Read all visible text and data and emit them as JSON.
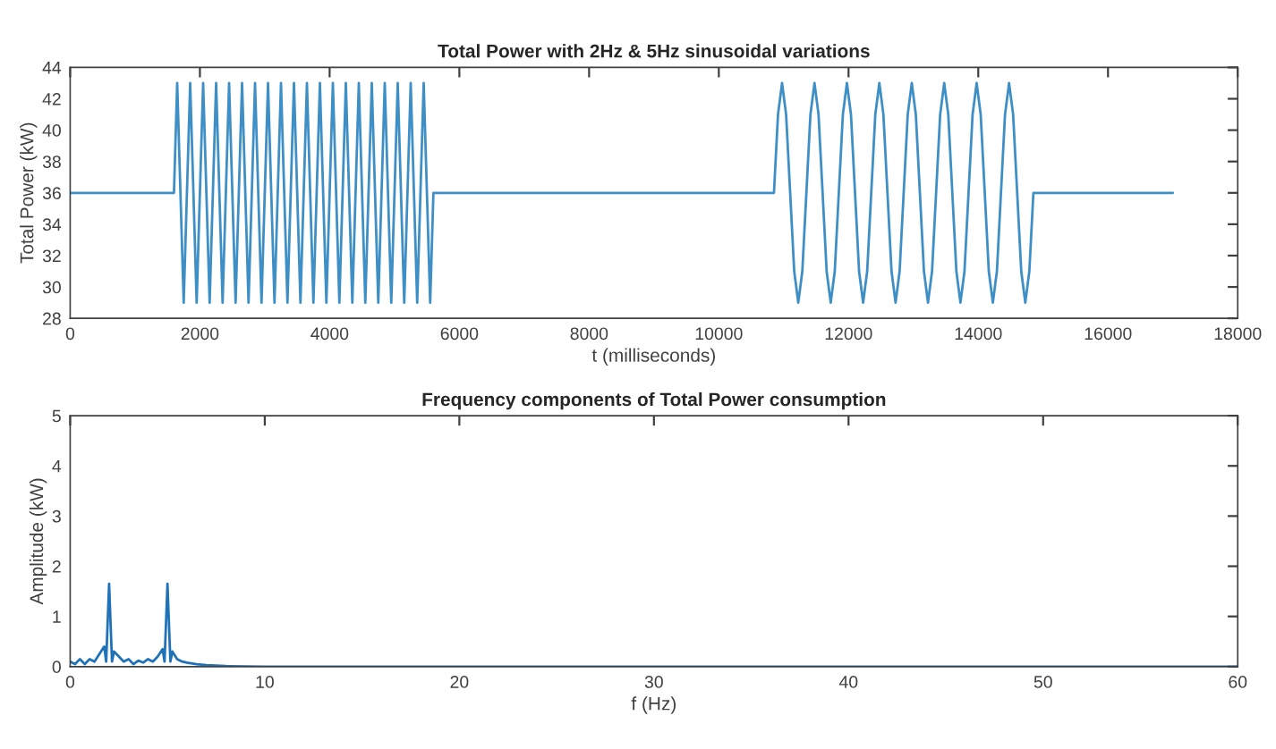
{
  "chart_data": [
    {
      "type": "line",
      "title": "Total Power with 2Hz & 5Hz sinusoidal variations",
      "xlabel": "t (milliseconds)",
      "ylabel": "Total Power (kW)",
      "xlim": [
        0,
        18000
      ],
      "xticks": [
        0,
        2000,
        4000,
        6000,
        8000,
        10000,
        12000,
        14000,
        16000,
        18000
      ],
      "ylim": [
        28,
        44
      ],
      "yticks": [
        28,
        30,
        32,
        34,
        36,
        38,
        40,
        42,
        44
      ],
      "series": [
        {
          "color": "#3d8fc6",
          "x": [
            0,
            1600,
            1650,
            1700,
            1750,
            1800,
            1850,
            1900,
            1950,
            2000,
            2050,
            2100,
            2150,
            2200,
            2250,
            2300,
            2350,
            2400,
            2450,
            2500,
            2550,
            2600,
            2650,
            2700,
            2750,
            2800,
            2850,
            2900,
            2950,
            3000,
            3050,
            3100,
            3150,
            3200,
            3250,
            3300,
            3350,
            3400,
            3450,
            3500,
            3550,
            3600,
            3650,
            3700,
            3750,
            3800,
            3850,
            3900,
            3950,
            4000,
            4050,
            4100,
            4150,
            4200,
            4250,
            4300,
            4350,
            4400,
            4450,
            4500,
            4550,
            4600,
            4650,
            4700,
            4750,
            4800,
            4850,
            4900,
            4950,
            5000,
            5050,
            5100,
            5150,
            5200,
            5250,
            5300,
            5350,
            5400,
            5450,
            5500,
            5550,
            5600,
            10850,
            10912.5,
            10975,
            11037.5,
            11100,
            11162.5,
            11225,
            11287.5,
            11350,
            11412.5,
            11475,
            11537.5,
            11600,
            11662.5,
            11725,
            11787.5,
            11850,
            11912.5,
            11975,
            12037.5,
            12100,
            12162.5,
            12225,
            12287.5,
            12350,
            12412.5,
            12475,
            12537.5,
            12600,
            12662.5,
            12725,
            12787.5,
            12850,
            12912.5,
            12975,
            13037.5,
            13100,
            13162.5,
            13225,
            13287.5,
            13350,
            13412.5,
            13475,
            13537.5,
            13600,
            13662.5,
            13725,
            13787.5,
            13850,
            13912.5,
            13975,
            14037.5,
            14100,
            14162.5,
            14225,
            14287.5,
            14350,
            14412.5,
            14475,
            14537.5,
            14600,
            14662.5,
            14725,
            14787.5,
            14850,
            17000
          ],
          "values": [
            36,
            36,
            43,
            36,
            29,
            36,
            43,
            36,
            29,
            36,
            43,
            36,
            29,
            36,
            43,
            36,
            29,
            36,
            43,
            36,
            29,
            36,
            43,
            36,
            29,
            36,
            43,
            36,
            29,
            36,
            43,
            36,
            29,
            36,
            43,
            36,
            29,
            36,
            43,
            36,
            29,
            36,
            43,
            36,
            29,
            36,
            43,
            36,
            29,
            36,
            43,
            36,
            29,
            36,
            43,
            36,
            29,
            36,
            43,
            36,
            29,
            36,
            43,
            36,
            29,
            36,
            43,
            36,
            29,
            36,
            43,
            36,
            29,
            36,
            43,
            36,
            29,
            36,
            43,
            36,
            29,
            36,
            36,
            41,
            43,
            41,
            36,
            31,
            29,
            31,
            36,
            41,
            43,
            41,
            36,
            31,
            29,
            31,
            36,
            41,
            43,
            41,
            36,
            31,
            29,
            31,
            36,
            41,
            43,
            41,
            36,
            31,
            29,
            31,
            36,
            41,
            43,
            41,
            36,
            31,
            29,
            31,
            36,
            41,
            43,
            41,
            36,
            31,
            29,
            31,
            36,
            41,
            43,
            41,
            36,
            31,
            29,
            31,
            36,
            41,
            43,
            41,
            36,
            31,
            29,
            31,
            36,
            36
          ]
        }
      ]
    },
    {
      "type": "line",
      "title": "Frequency components of Total Power consumption",
      "xlabel": "f (Hz)",
      "ylabel": "Amplitude (kW)",
      "xlim": [
        0,
        60
      ],
      "xticks": [
        0,
        10,
        20,
        30,
        40,
        50,
        60
      ],
      "ylim": [
        0,
        5
      ],
      "yticks": [
        0,
        1,
        2,
        3,
        4,
        5
      ],
      "series": [
        {
          "color": "#1f72b8",
          "x": [
            0,
            0.25,
            0.5,
            0.75,
            1,
            1.25,
            1.5,
            1.75,
            1.85,
            2,
            2.15,
            2.25,
            2.5,
            2.75,
            3,
            3.25,
            3.5,
            3.75,
            4,
            4.25,
            4.5,
            4.75,
            4.85,
            5,
            5.15,
            5.25,
            5.5,
            5.75,
            6,
            6.5,
            7,
            8,
            10,
            60
          ],
          "values": [
            0.1,
            0.05,
            0.15,
            0.05,
            0.15,
            0.1,
            0.25,
            0.4,
            0.1,
            1.65,
            0.1,
            0.3,
            0.2,
            0.1,
            0.15,
            0.05,
            0.12,
            0.08,
            0.15,
            0.1,
            0.2,
            0.35,
            0.1,
            1.65,
            0.1,
            0.3,
            0.15,
            0.1,
            0.08,
            0.05,
            0.03,
            0.01,
            0,
            0
          ]
        }
      ]
    }
  ]
}
